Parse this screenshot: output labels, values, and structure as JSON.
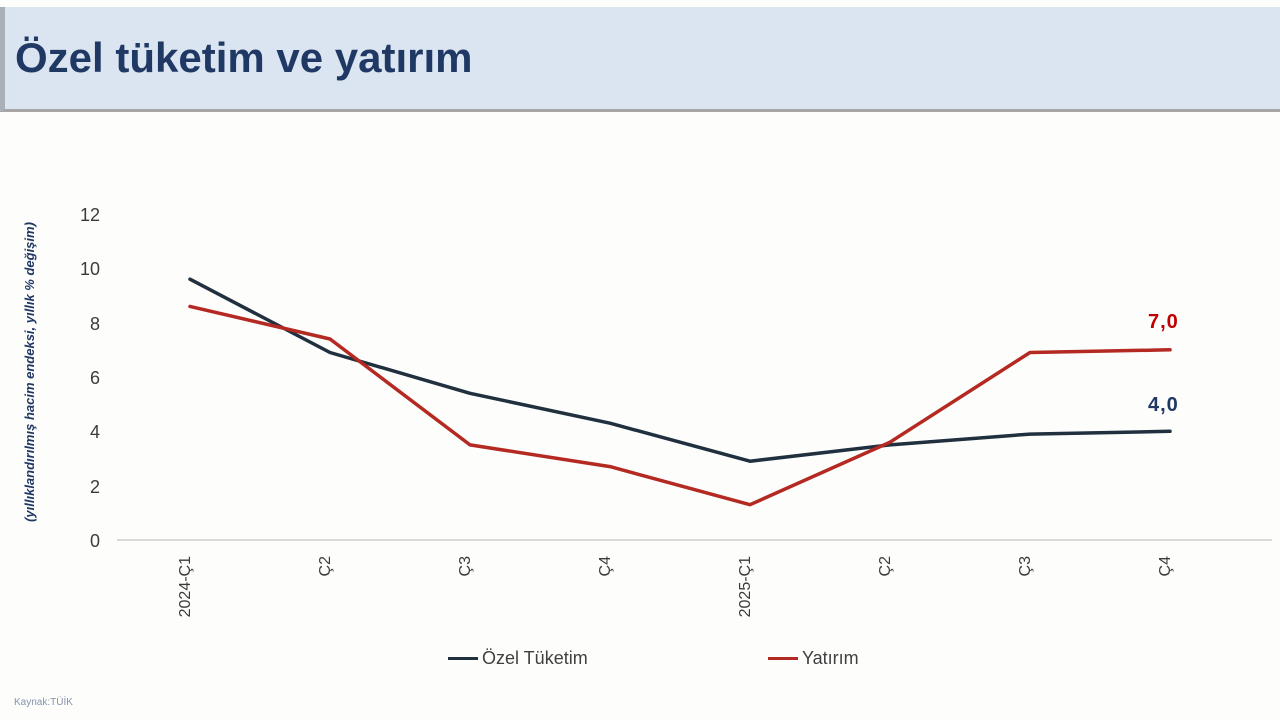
{
  "header": {
    "title": "Özel tüketim ve yatırım"
  },
  "source": "Kaynak:TÜİK",
  "colors": {
    "header_bg": "#dbe5f1",
    "title": "#1f3864",
    "axis_line": "#d9d9d9",
    "tick_text": "#3b3b3b"
  },
  "chart_data": {
    "type": "line",
    "categories": [
      "2024-Ç1",
      "Ç2",
      "Ç3",
      "Ç4",
      "2025-Ç1",
      "Ç2",
      "Ç3",
      "Ç4"
    ],
    "series": [
      {
        "name": "Özel Tüketim",
        "color": "#20303f",
        "label_color": "#1f3864",
        "values": [
          9.6,
          6.9,
          5.4,
          4.3,
          2.9,
          3.5,
          3.9,
          4.0
        ],
        "end_label": "4,0"
      },
      {
        "name": "Yatırım",
        "color": "#b42922",
        "label_color": "#c00000",
        "values": [
          8.6,
          7.4,
          3.5,
          2.7,
          1.3,
          3.6,
          6.9,
          7.0
        ],
        "end_label": "7,0"
      }
    ],
    "title": "Özel tüketim ve yatırım",
    "xlabel": "",
    "ylabel": "(yıllıklandırılmış hacim endeksi, yıllık % değişim)",
    "yticks": [
      "0",
      "2",
      "4",
      "6",
      "8",
      "10",
      "12"
    ],
    "ylim": [
      0,
      12
    ],
    "grid": false,
    "legend_position": "bottom"
  }
}
